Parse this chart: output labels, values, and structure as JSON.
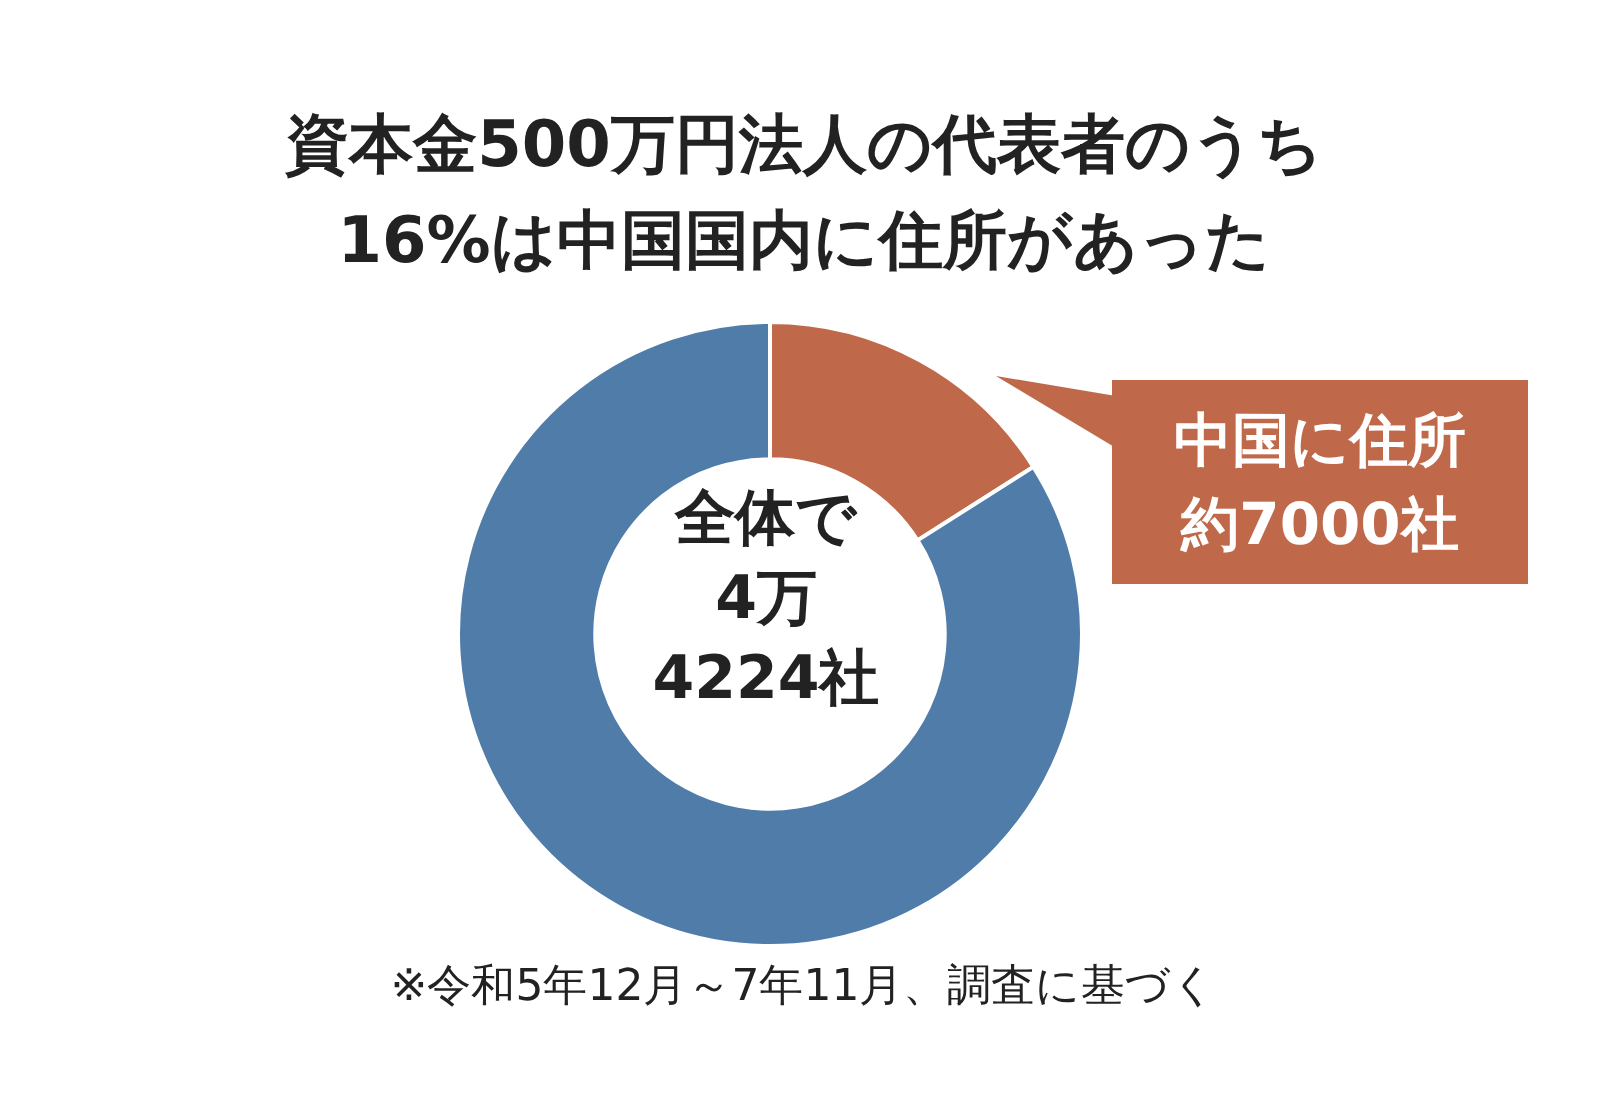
{
  "chart_data": {
    "type": "donut",
    "title": "資本金500万円法人の代表者のうち\n16%は中国国内に住所があった",
    "categories": [
      "中国に住所",
      null
    ],
    "values": [
      16,
      84
    ],
    "colors": [
      "#c0694a",
      "#4f7ca8"
    ],
    "value_labels": [
      "約7000社",
      null
    ],
    "annotations": [
      "全体で\n4万\n4224社",
      "※令和5年12月～7年11月、調査に基づく"
    ]
  }
}
